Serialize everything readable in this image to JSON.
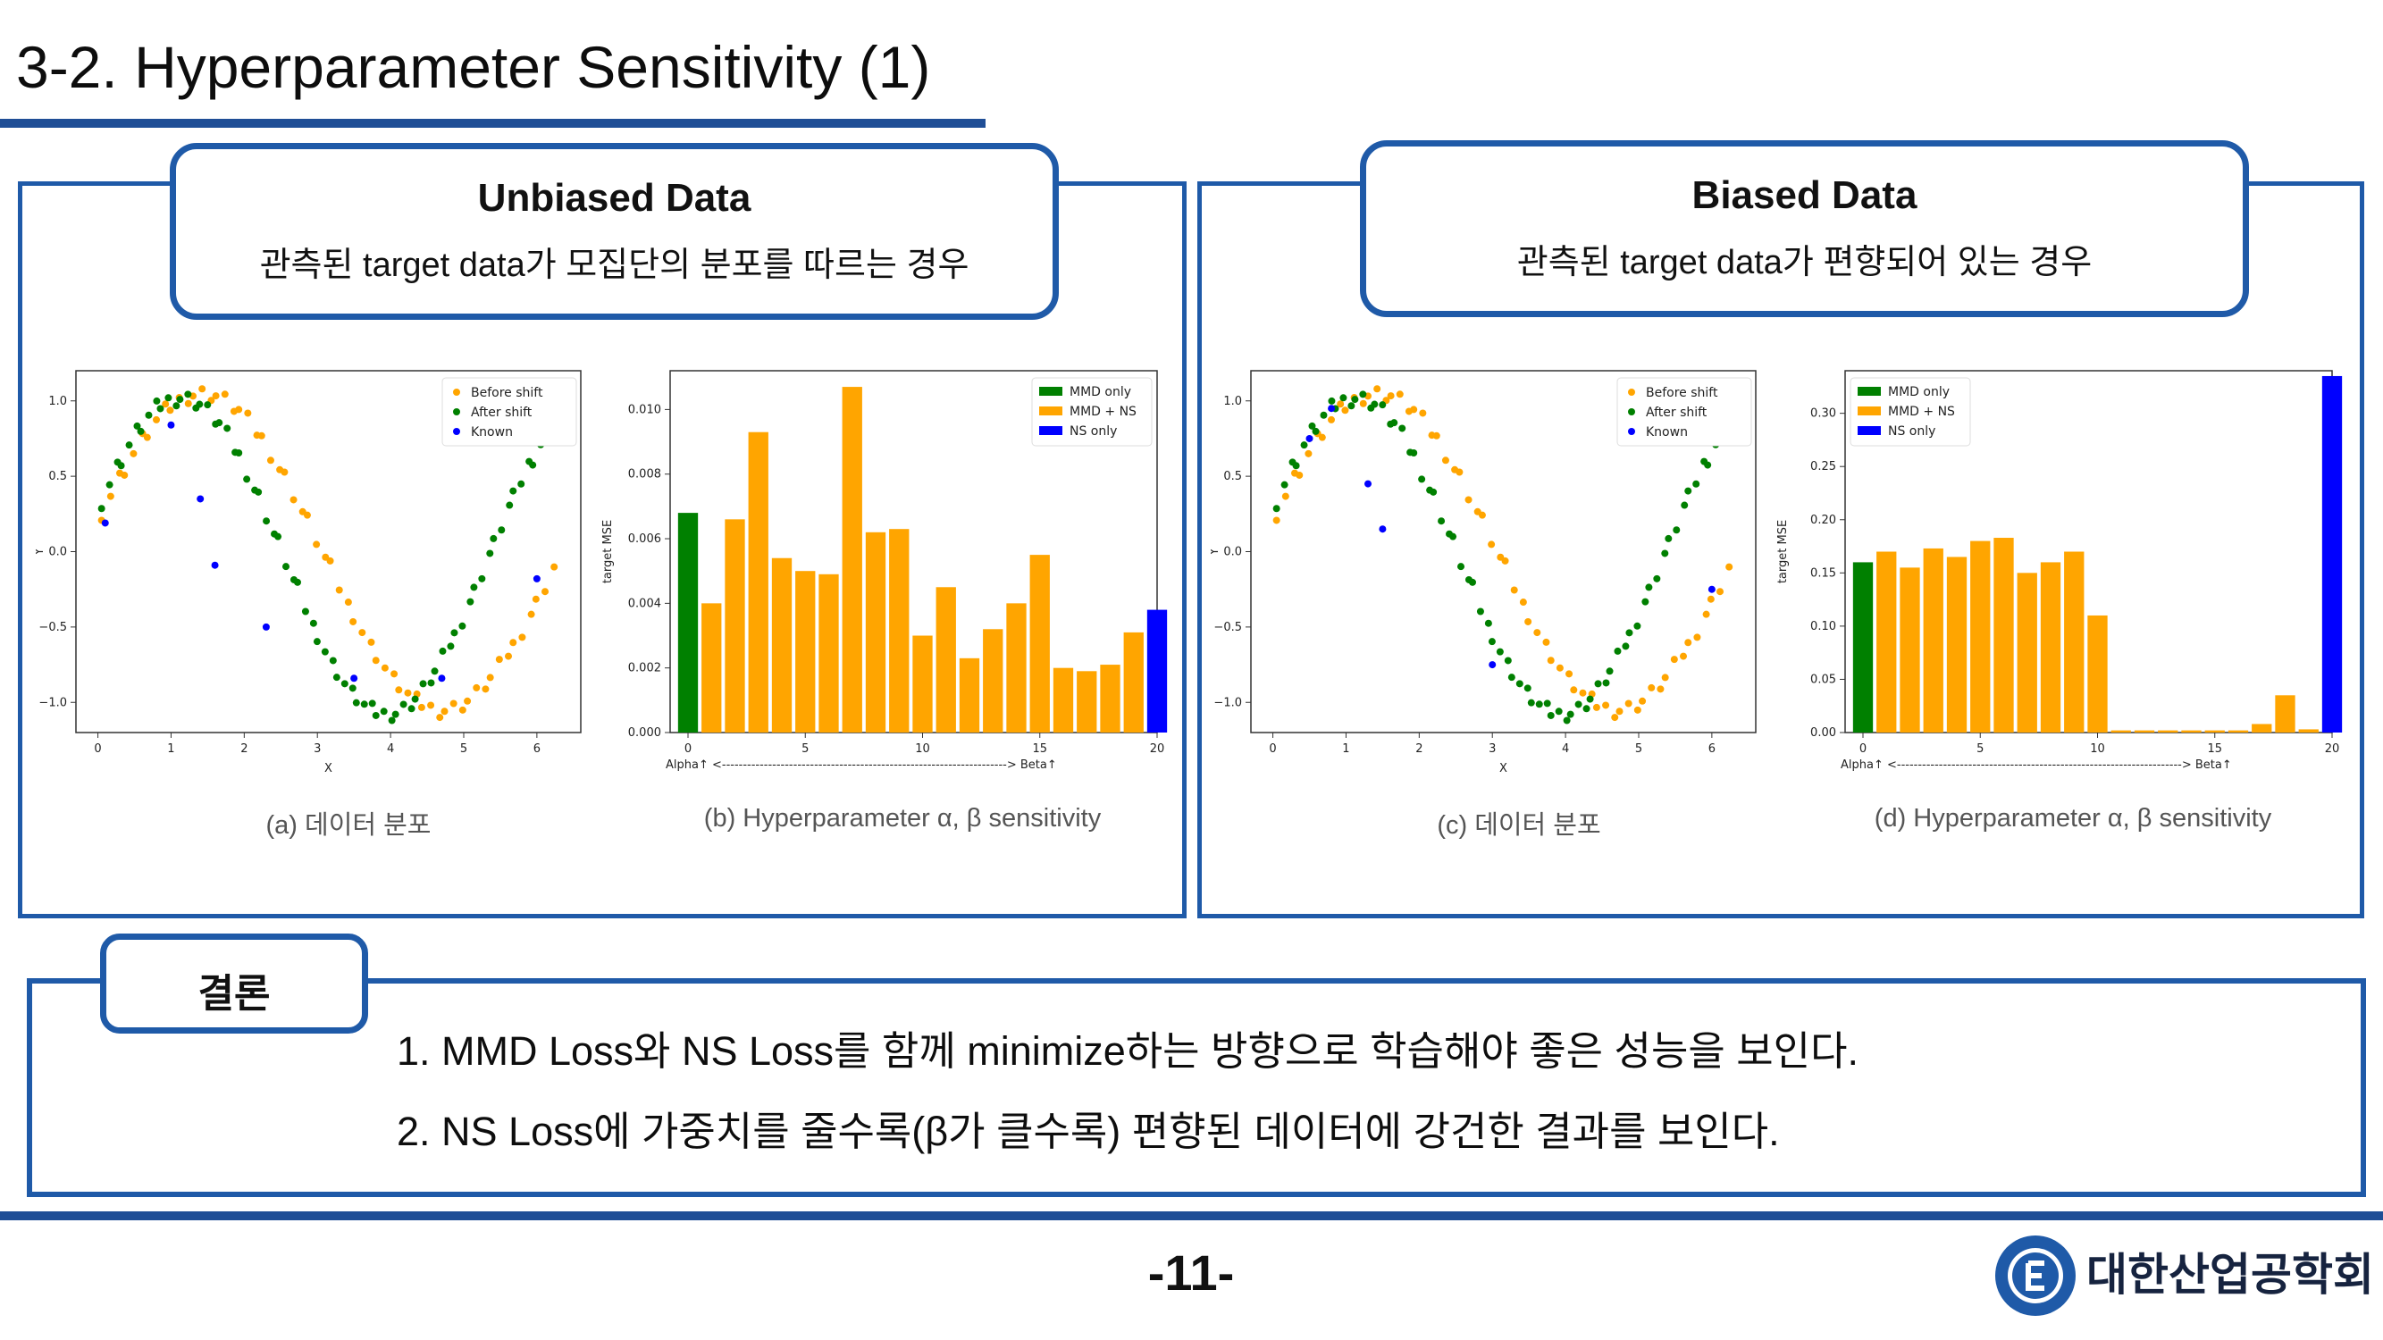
{
  "slide": {
    "title": "3-2. Hyperparameter Sensitivity (1)",
    "page_number": "-11-",
    "org_name": "대한산업공학회"
  },
  "panels": {
    "unbiased": {
      "heading": "Unbiased Data",
      "subtitle": "관측된 target data가 모집단의 분포를 따르는 경우"
    },
    "biased": {
      "heading": "Biased Data",
      "subtitle": "관측된 target data가 편향되어 있는 경우"
    }
  },
  "captions": {
    "a": "(a) 데이터 분포",
    "b": "(b) Hyperparameter α, β  sensitivity",
    "c": "(c) 데이터 분포",
    "d": "(d) Hyperparameter α, β  sensitivity"
  },
  "conclusion": {
    "tab_label": "결론",
    "line1": "1. MMD Loss와 NS Loss를 함께 minimize하는 방향으로 학습해야 좋은 성능을 보인다.",
    "line2": "2. NS Loss에 가중치를 줄수록(β가 클수록) 편향된 데이터에 강건한 결과를 보인다."
  },
  "colors": {
    "accent": "#1f5aa8",
    "orange": "#ffa500",
    "green": "#008000",
    "blue": "#0000ff"
  },
  "chart_data": [
    {
      "type": "scatter",
      "xlabel": "X",
      "ylabel": "Y",
      "xlim": [
        -0.3,
        6.6
      ],
      "ylim": [
        -1.2,
        1.2
      ],
      "xticks": [
        "0",
        "1",
        "2",
        "3",
        "4",
        "5",
        "6"
      ],
      "yticks": [
        "−1.0",
        "−0.5",
        "0.0",
        "0.5",
        "1.0"
      ],
      "legend_position": "top-right",
      "series": [
        {
          "name": "Before shift",
          "color": "#ffa500",
          "func": "sin_shift",
          "count": 60
        },
        {
          "name": "After shift",
          "color": "#008000",
          "func": "sin",
          "count": 70
        },
        {
          "name": "Known",
          "color": "#0000ff",
          "x": [
            0.1,
            1.0,
            1.4,
            1.6,
            2.3,
            3.5,
            4.7,
            6.0
          ],
          "y": [
            0.19,
            0.84,
            0.35,
            -0.09,
            -0.5,
            -0.84,
            -0.84,
            -0.18
          ]
        }
      ]
    },
    {
      "type": "bar",
      "xlabel": "Alpha↑ <--------------------------------------------------------------------> Beta↑",
      "ylabel": "target MSE",
      "ylim": [
        0,
        0.0112
      ],
      "xticks": [
        "0",
        "5",
        "10",
        "15",
        "20"
      ],
      "yticks": [
        "0.000",
        "0.002",
        "0.004",
        "0.006",
        "0.008",
        "0.010"
      ],
      "legend_position": "top-right",
      "categories": [
        0,
        1,
        2,
        3,
        4,
        5,
        6,
        7,
        8,
        9,
        10,
        11,
        12,
        13,
        14,
        15,
        16,
        17,
        18,
        19,
        20
      ],
      "values": [
        0.0068,
        0.004,
        0.0066,
        0.0093,
        0.0054,
        0.005,
        0.0049,
        0.0107,
        0.0062,
        0.0063,
        0.003,
        0.0045,
        0.0023,
        0.0032,
        0.004,
        0.0055,
        0.002,
        0.0019,
        0.0021,
        0.0031,
        0.0038
      ],
      "legend": [
        {
          "name": "MMD only",
          "color": "#008000"
        },
        {
          "name": "MMD + NS",
          "color": "#ffa500"
        },
        {
          "name": "NS only",
          "color": "#0000ff"
        }
      ]
    },
    {
      "type": "scatter",
      "xlabel": "X",
      "ylabel": "Y",
      "xlim": [
        -0.3,
        6.6
      ],
      "ylim": [
        -1.2,
        1.2
      ],
      "xticks": [
        "0",
        "1",
        "2",
        "3",
        "4",
        "5",
        "6"
      ],
      "yticks": [
        "−1.0",
        "−0.5",
        "0.0",
        "0.5",
        "1.0"
      ],
      "legend_position": "top-right",
      "series": [
        {
          "name": "Before shift",
          "color": "#ffa500",
          "func": "sin_shift",
          "count": 60
        },
        {
          "name": "After shift",
          "color": "#008000",
          "func": "sin",
          "count": 70
        },
        {
          "name": "Known",
          "color": "#0000ff",
          "x": [
            0.5,
            0.8,
            1.3,
            1.5,
            3.0,
            6.0
          ],
          "y": [
            0.75,
            0.95,
            0.45,
            0.15,
            -0.75,
            -0.25
          ]
        }
      ]
    },
    {
      "type": "bar",
      "xlabel": "Alpha↑ <--------------------------------------------------------------------> Beta↑",
      "ylabel": "target MSE",
      "ylim": [
        0,
        0.34
      ],
      "xticks": [
        "0",
        "5",
        "10",
        "15",
        "20"
      ],
      "yticks": [
        "0.00",
        "0.05",
        "0.10",
        "0.15",
        "0.20",
        "0.25",
        "0.30"
      ],
      "legend_position": "top-left",
      "categories": [
        0,
        1,
        2,
        3,
        4,
        5,
        6,
        7,
        8,
        9,
        10,
        11,
        12,
        13,
        14,
        15,
        16,
        17,
        18,
        19,
        20
      ],
      "values": [
        0.16,
        0.17,
        0.155,
        0.173,
        0.165,
        0.18,
        0.183,
        0.15,
        0.16,
        0.17,
        0.11,
        0.002,
        0.002,
        0.002,
        0.002,
        0.002,
        0.002,
        0.008,
        0.035,
        0.003,
        0.335
      ],
      "legend": [
        {
          "name": "MMD only",
          "color": "#008000"
        },
        {
          "name": "MMD + NS",
          "color": "#ffa500"
        },
        {
          "name": "NS only",
          "color": "#0000ff"
        }
      ]
    }
  ]
}
